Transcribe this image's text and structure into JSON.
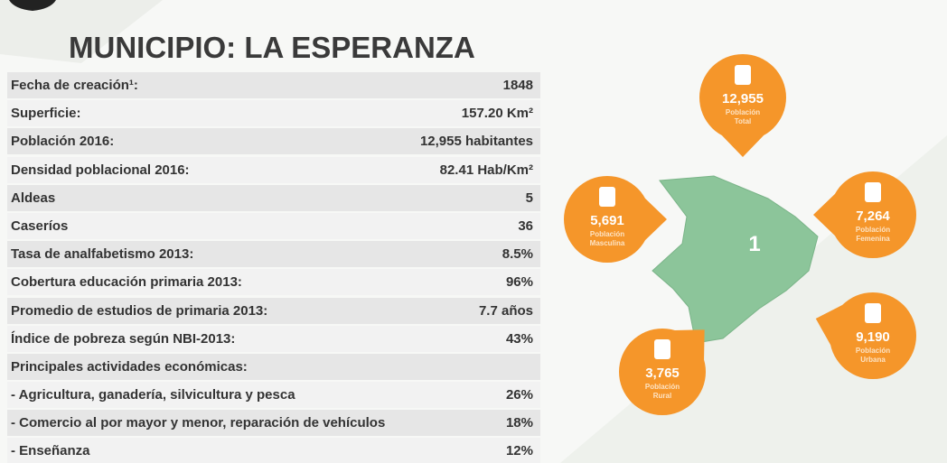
{
  "title": "MUNICIPIO: LA ESPERANZA",
  "table": {
    "rows": [
      [
        "Fecha de creación¹:",
        "1848"
      ],
      [
        "Superficie:",
        "157.20 Km²"
      ],
      [
        "Población 2016:",
        "12,955 habitantes"
      ],
      [
        "Densidad poblacional 2016:",
        "82.41 Hab/Km²"
      ],
      [
        "Aldeas",
        "5"
      ],
      [
        "Caseríos",
        "36"
      ],
      [
        "Tasa de analfabetismo 2013:",
        "8.5%"
      ],
      [
        "Cobertura educación primaria 2013:",
        "96%"
      ],
      [
        "Promedio de estudios de primaria 2013:",
        "7.7 años"
      ],
      [
        "Índice de pobreza según NBI-2013:",
        "43%"
      ],
      [
        "Principales actividades económicas:"
      ],
      [
        "- Agricultura, ganadería, silvicultura y pesca",
        "26%"
      ],
      [
        "- Comercio al por mayor y menor, reparación de vehículos",
        "18%"
      ],
      [
        "-  Enseñanza",
        "12%"
      ]
    ]
  },
  "map_label": "1",
  "bubbles": [
    {
      "value": "12,955",
      "label": [
        "Población",
        "Total"
      ]
    },
    {
      "value": "5,691",
      "label": [
        "Población",
        "Masculina"
      ]
    },
    {
      "value": "7,264",
      "label": [
        "Población",
        "Femenina"
      ]
    },
    {
      "value": "9,190",
      "label": [
        "Población",
        "Urbana"
      ]
    },
    {
      "value": "3,765",
      "label": [
        "Población",
        "Rural"
      ]
    }
  ]
}
